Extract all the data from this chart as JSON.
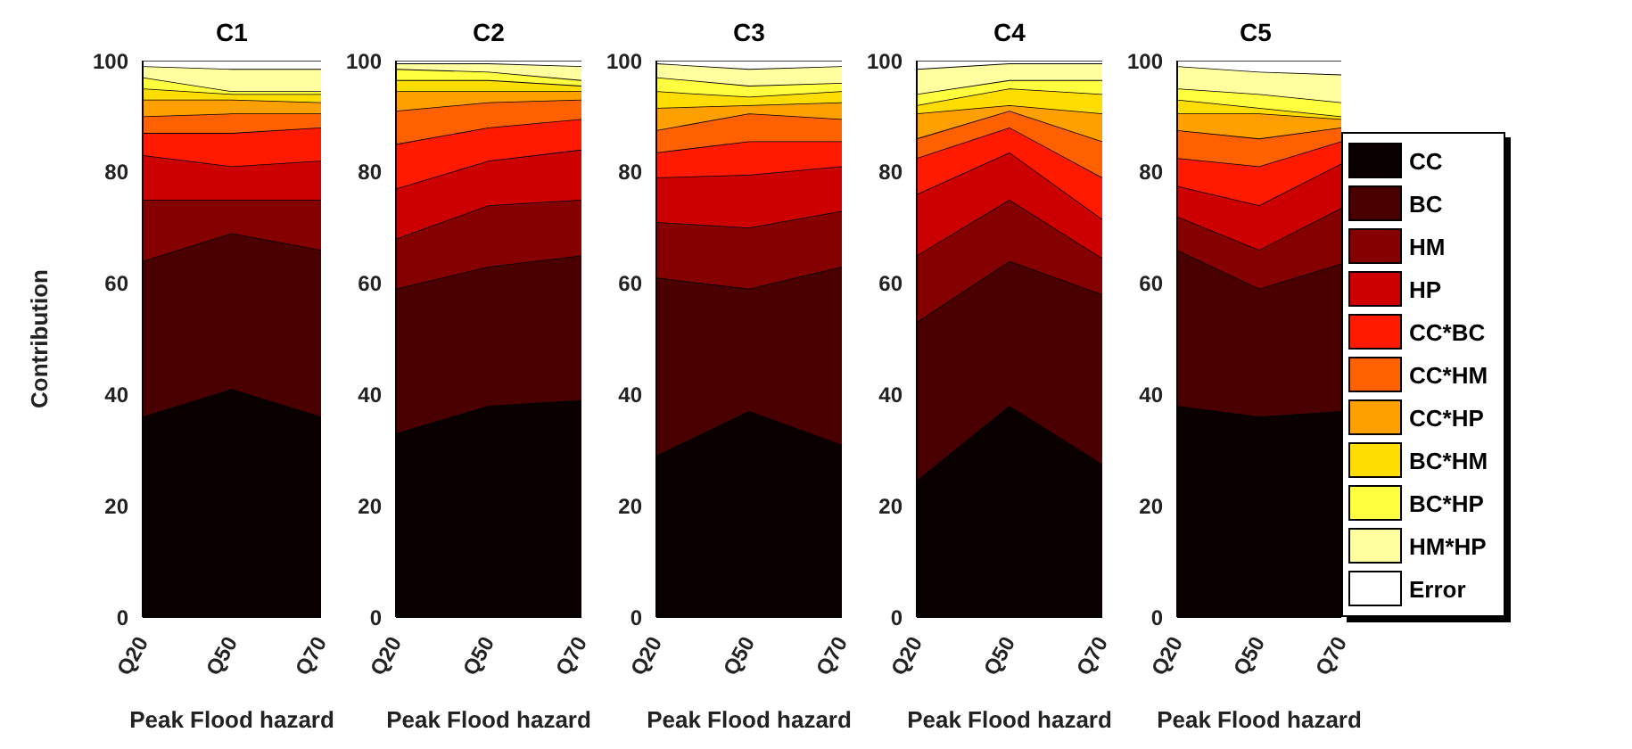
{
  "chart_data": [
    {
      "type": "area",
      "stacked": true,
      "title": "C1",
      "xlabel": "Peak Flood hazard",
      "ylabel": "Contribution",
      "categories": [
        "Q20",
        "Q50",
        "Q70"
      ],
      "ylim": [
        0,
        100
      ],
      "yticks": [
        0,
        20,
        40,
        60,
        80,
        100
      ],
      "series": [
        {
          "color": "#0a0000",
          "values": [
            36,
            41,
            36
          ]
        },
        {
          "color": "#4a0000",
          "values": [
            28,
            28,
            30
          ]
        },
        {
          "color": "#850000",
          "values": [
            11,
            6,
            9
          ]
        },
        {
          "color": "#cc0000",
          "values": [
            8,
            6,
            7
          ]
        },
        {
          "color": "#ff1a00",
          "values": [
            4,
            6,
            6
          ]
        },
        {
          "color": "#ff6000",
          "values": [
            3,
            3.5,
            2.5
          ]
        },
        {
          "color": "#ffa000",
          "values": [
            3,
            2.5,
            2
          ]
        },
        {
          "color": "#ffdd00",
          "values": [
            2,
            1,
            1.5
          ]
        },
        {
          "color": "#ffff40",
          "values": [
            2,
            0.5,
            0.5
          ]
        },
        {
          "color": "#ffffa0",
          "values": [
            2,
            4,
            4
          ]
        },
        {
          "color": "#ffffff",
          "values": [
            1,
            1.5,
            1.5
          ]
        }
      ]
    },
    {
      "type": "area",
      "stacked": true,
      "title": "C2",
      "xlabel": "Peak Flood hazard",
      "categories": [
        "Q20",
        "Q50",
        "Q70"
      ],
      "ylim": [
        0,
        100
      ],
      "yticks": [
        0,
        20,
        40,
        60,
        80,
        100
      ],
      "series": [
        {
          "color": "#0a0000",
          "values": [
            33,
            38,
            39
          ]
        },
        {
          "color": "#4a0000",
          "values": [
            26,
            25,
            26
          ]
        },
        {
          "color": "#850000",
          "values": [
            9,
            11,
            10
          ]
        },
        {
          "color": "#cc0000",
          "values": [
            9,
            8,
            9
          ]
        },
        {
          "color": "#ff1a00",
          "values": [
            8,
            6,
            5.5
          ]
        },
        {
          "color": "#ff6000",
          "values": [
            6,
            4.5,
            3.5
          ]
        },
        {
          "color": "#ffa000",
          "values": [
            3.5,
            2,
            1.5
          ]
        },
        {
          "color": "#ffdd00",
          "values": [
            2,
            2,
            1
          ]
        },
        {
          "color": "#ffff40",
          "values": [
            2,
            1.5,
            1
          ]
        },
        {
          "color": "#ffffa0",
          "values": [
            1,
            1.5,
            2.5
          ]
        },
        {
          "color": "#ffffff",
          "values": [
            0.5,
            0.5,
            1
          ]
        }
      ]
    },
    {
      "type": "area",
      "stacked": true,
      "title": "C3",
      "xlabel": "Peak Flood hazard",
      "categories": [
        "Q20",
        "Q50",
        "Q70"
      ],
      "ylim": [
        0,
        100
      ],
      "yticks": [
        0,
        20,
        40,
        60,
        80,
        100
      ],
      "series": [
        {
          "color": "#0a0000",
          "values": [
            29,
            37,
            31
          ]
        },
        {
          "color": "#4a0000",
          "values": [
            32,
            22,
            32
          ]
        },
        {
          "color": "#850000",
          "values": [
            10,
            11,
            10
          ]
        },
        {
          "color": "#cc0000",
          "values": [
            8,
            9.5,
            8
          ]
        },
        {
          "color": "#ff1a00",
          "values": [
            4.5,
            6,
            4.5
          ]
        },
        {
          "color": "#ff6000",
          "values": [
            4,
            5,
            4
          ]
        },
        {
          "color": "#ffa000",
          "values": [
            4,
            1.5,
            3
          ]
        },
        {
          "color": "#ffdd00",
          "values": [
            3,
            1.5,
            2
          ]
        },
        {
          "color": "#ffff40",
          "values": [
            2.5,
            2,
            1.5
          ]
        },
        {
          "color": "#ffffa0",
          "values": [
            2.5,
            3,
            3
          ]
        },
        {
          "color": "#ffffff",
          "values": [
            0.5,
            1.5,
            1
          ]
        }
      ]
    },
    {
      "type": "area",
      "stacked": true,
      "title": "C4",
      "xlabel": "Peak Flood hazard",
      "categories": [
        "Q20",
        "Q50",
        "Q70"
      ],
      "ylim": [
        0,
        100
      ],
      "yticks": [
        0,
        20,
        40,
        60,
        80,
        100
      ],
      "series": [
        {
          "color": "#0a0000",
          "values": [
            24.5,
            38,
            27.5
          ]
        },
        {
          "color": "#4a0000",
          "values": [
            28.5,
            26,
            30.5
          ]
        },
        {
          "color": "#850000",
          "values": [
            12,
            11,
            6.5
          ]
        },
        {
          "color": "#cc0000",
          "values": [
            11,
            8.5,
            7
          ]
        },
        {
          "color": "#ff1a00",
          "values": [
            6.5,
            4.5,
            7.5
          ]
        },
        {
          "color": "#ff6000",
          "values": [
            3.5,
            3,
            6.5
          ]
        },
        {
          "color": "#ffa000",
          "values": [
            4.5,
            1,
            5
          ]
        },
        {
          "color": "#ffdd00",
          "values": [
            1.5,
            3,
            3.5
          ]
        },
        {
          "color": "#ffff40",
          "values": [
            2,
            1.5,
            2.5
          ]
        },
        {
          "color": "#ffffa0",
          "values": [
            4.5,
            3,
            3
          ]
        },
        {
          "color": "#ffffff",
          "values": [
            1.5,
            0.5,
            0.5
          ]
        }
      ]
    },
    {
      "type": "area",
      "stacked": true,
      "title": "C5",
      "xlabel": "Peak Flood hazard",
      "categories": [
        "Q20",
        "Q50",
        "Q70"
      ],
      "ylim": [
        0,
        100
      ],
      "yticks": [
        0,
        20,
        40,
        60,
        80,
        100
      ],
      "legend": "right",
      "series": [
        {
          "name": "CC",
          "color": "#0a0000",
          "values": [
            38,
            36,
            37
          ]
        },
        {
          "name": "BC",
          "color": "#4a0000",
          "values": [
            28,
            23,
            26.5
          ]
        },
        {
          "name": "HM",
          "color": "#850000",
          "values": [
            6,
            7,
            10
          ]
        },
        {
          "name": "HP",
          "color": "#cc0000",
          "values": [
            5.5,
            8,
            8
          ]
        },
        {
          "name": "CC*BC",
          "color": "#ff1a00",
          "values": [
            5,
            7,
            4
          ]
        },
        {
          "name": "CC*HM",
          "color": "#ff6000",
          "values": [
            5,
            5,
            2.5
          ]
        },
        {
          "name": "CC*HP",
          "color": "#ffa000",
          "values": [
            3,
            4.5,
            1.5
          ]
        },
        {
          "name": "BC*HM",
          "color": "#ffdd00",
          "values": [
            2.5,
            1,
            0.5
          ]
        },
        {
          "name": "BC*HP",
          "color": "#ffff40",
          "values": [
            2,
            2.5,
            2.5
          ]
        },
        {
          "name": "HM*HP",
          "color": "#ffffa0",
          "values": [
            4,
            4,
            5
          ]
        },
        {
          "name": "Error",
          "color": "#ffffff",
          "values": [
            1,
            2,
            2.5
          ]
        }
      ]
    }
  ]
}
